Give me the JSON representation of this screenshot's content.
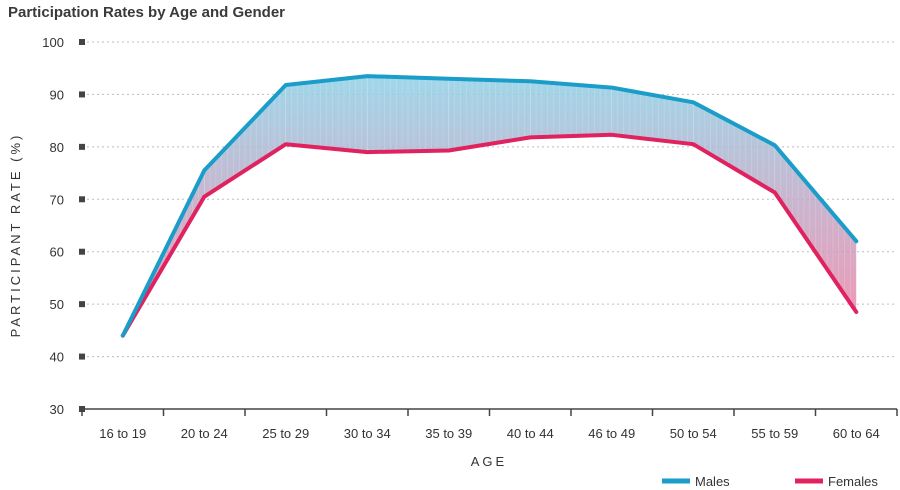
{
  "chart_data": {
    "type": "line",
    "title": "Participation Rates by Age and Gender",
    "xlabel": "AGE",
    "ylabel": "PARTICIPANT RATE (%)",
    "ylim": [
      30,
      100
    ],
    "yticks": [
      "30",
      "40",
      "50",
      "60",
      "70",
      "80",
      "90",
      "100"
    ],
    "categories": [
      "16 to 19",
      "20 to 24",
      "25 to 29",
      "30 to 34",
      "35 to 39",
      "40 to 44",
      "46 to 49",
      "50 to 54",
      "55 to 59",
      "60 to 64"
    ],
    "series": [
      {
        "name": "Males",
        "color": "#1a9dc8",
        "values": [
          44,
          75.5,
          91.8,
          93.5,
          93,
          92.5,
          91.3,
          88.5,
          80.3,
          62
        ]
      },
      {
        "name": "Females",
        "color": "#e0225f",
        "values": [
          44,
          70.5,
          80.5,
          79,
          79.3,
          81.8,
          82.3,
          80.5,
          71.3,
          48.5
        ]
      }
    ],
    "grid": true,
    "legend": "bottom-right"
  }
}
